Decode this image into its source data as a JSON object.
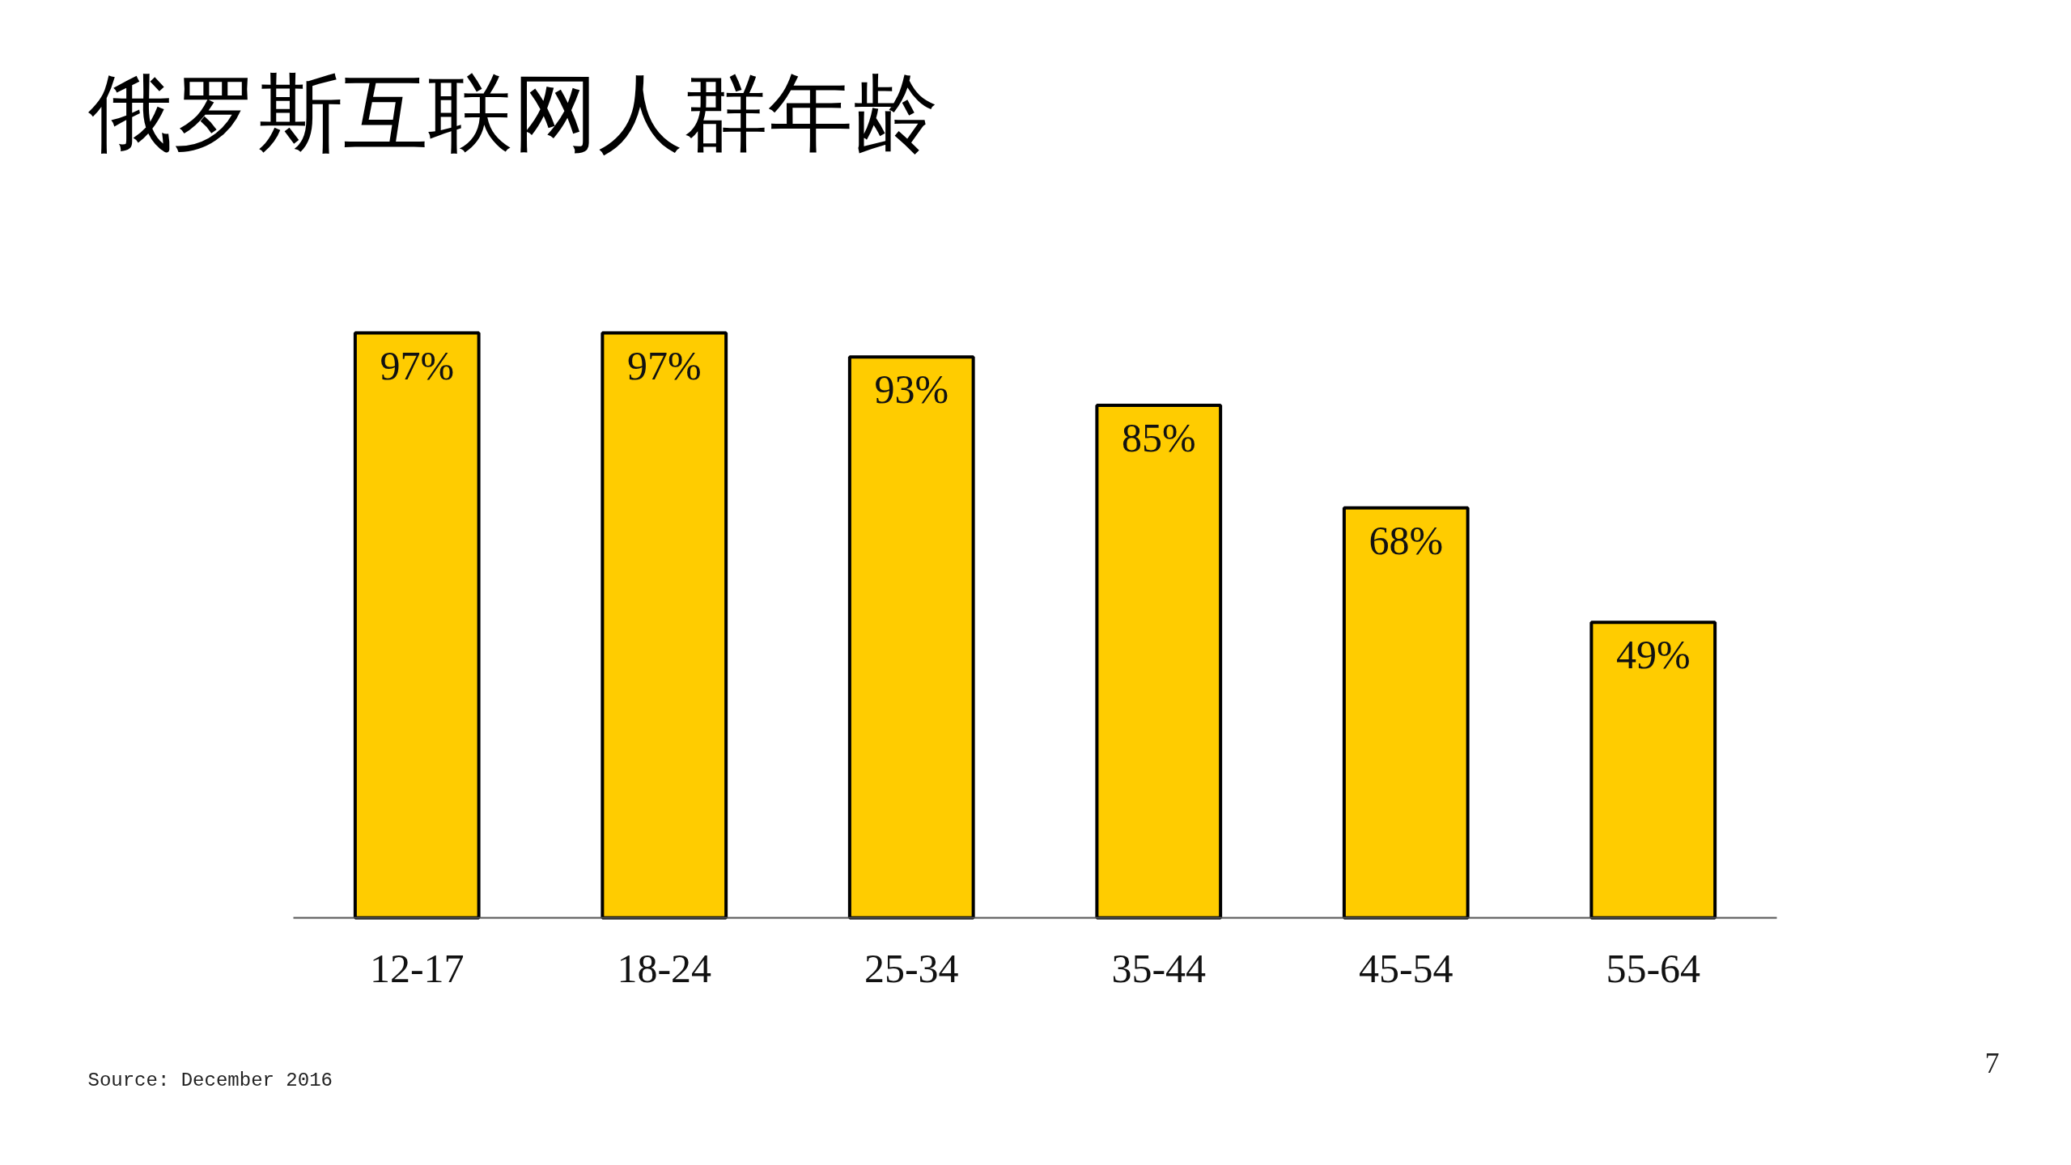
{
  "chart_data": {
    "type": "bar",
    "title": "俄罗斯互联网人群年龄",
    "categories": [
      "12-17",
      "18-24",
      "25-34",
      "35-44",
      "45-54",
      "55-64"
    ],
    "values": [
      97,
      97,
      93,
      85,
      68,
      49
    ],
    "color": "#ffcc00",
    "value_labels": [
      "97%",
      "97%",
      "93%",
      "85%",
      "68%",
      "49%"
    ],
    "annotations": [
      "Source: December 2016",
      "7"
    ]
  }
}
